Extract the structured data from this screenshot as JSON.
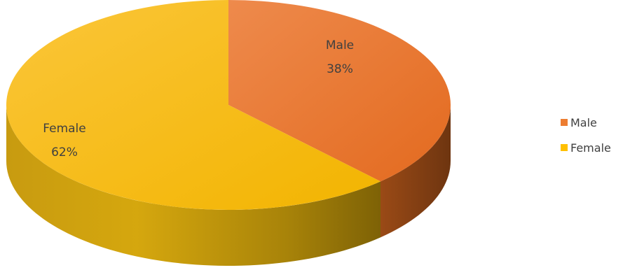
{
  "chart_data": {
    "type": "pie",
    "style": "3d",
    "categories": [
      "Male",
      "Female"
    ],
    "values": [
      38,
      62
    ],
    "unit": "%",
    "data_labels": [
      {
        "name": "Male",
        "percent": "38%"
      },
      {
        "name": "Female",
        "percent": "62%"
      }
    ],
    "legend": {
      "position": "right",
      "entries": [
        "Male",
        "Female"
      ]
    },
    "colors": {
      "Male": "#ED7D31",
      "Female": "#FFC000"
    },
    "start_angle_deg": 0,
    "direction": "clockwise"
  }
}
